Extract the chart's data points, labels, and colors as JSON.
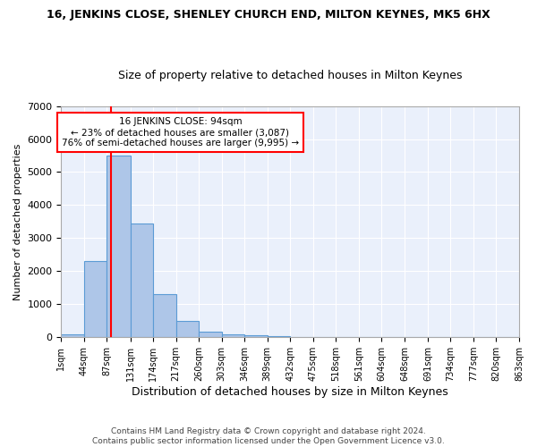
{
  "title": "16, JENKINS CLOSE, SHENLEY CHURCH END, MILTON KEYNES, MK5 6HX",
  "subtitle": "Size of property relative to detached houses in Milton Keynes",
  "xlabel": "Distribution of detached houses by size in Milton Keynes",
  "ylabel": "Number of detached properties",
  "bar_values": [
    100,
    2300,
    5500,
    3450,
    1300,
    500,
    175,
    100,
    50,
    20,
    10,
    5,
    5,
    2,
    2,
    1,
    1,
    1,
    0,
    0
  ],
  "bin_edges": [
    1,
    44,
    87,
    131,
    174,
    217,
    260,
    303,
    346,
    389,
    432,
    475,
    518,
    561,
    604,
    648,
    691,
    734,
    777,
    820,
    863
  ],
  "bar_color": "#aec6e8",
  "bar_edgecolor": "#5b9bd5",
  "tick_labels": [
    "1sqm",
    "44sqm",
    "87sqm",
    "131sqm",
    "174sqm",
    "217sqm",
    "260sqm",
    "303sqm",
    "346sqm",
    "389sqm",
    "432sqm",
    "475sqm",
    "518sqm",
    "561sqm",
    "604sqm",
    "648sqm",
    "691sqm",
    "734sqm",
    "777sqm",
    "820sqm",
    "863sqm"
  ],
  "red_line_x": 94,
  "annotation_line1": "16 JENKINS CLOSE: 94sqm",
  "annotation_line2": "← 23% of detached houses are smaller (3,087)",
  "annotation_line3": "76% of semi-detached houses are larger (9,995) →",
  "annotation_box_color": "white",
  "annotation_border_color": "red",
  "ylim": [
    0,
    7000
  ],
  "yticks": [
    0,
    1000,
    2000,
    3000,
    4000,
    5000,
    6000,
    7000
  ],
  "footer_line1": "Contains HM Land Registry data © Crown copyright and database right 2024.",
  "footer_line2": "Contains public sector information licensed under the Open Government Licence v3.0.",
  "background_color": "#eaf0fb",
  "grid_color": "white",
  "title_fontsize": 9,
  "subtitle_fontsize": 9
}
